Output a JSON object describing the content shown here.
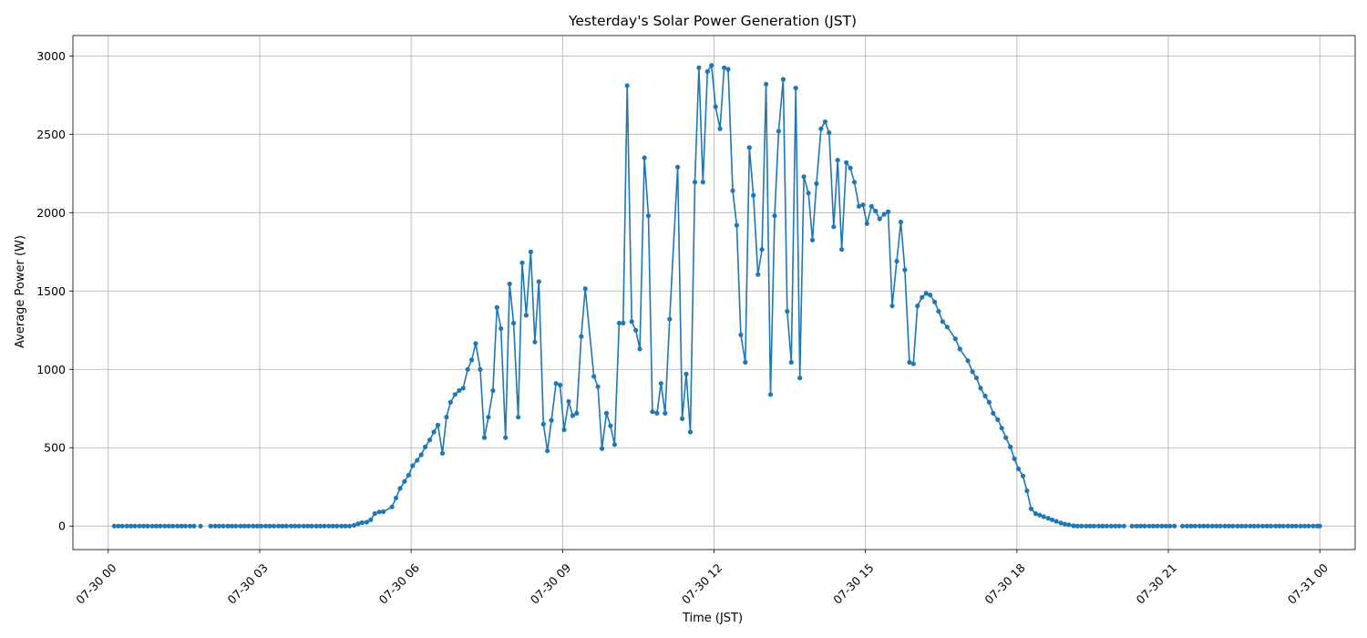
{
  "chart_data": {
    "type": "line",
    "title": "Yesterday's Solar Power Generation (JST)",
    "xlabel": "Time (JST)",
    "ylabel": "Average Power (W)",
    "xlim": [
      -0.7,
      24.7
    ],
    "ylim": [
      -150,
      3130
    ],
    "grid": true,
    "color": "#1f77b4",
    "x_ticks": [
      {
        "hour": 0,
        "label": "07-30 00"
      },
      {
        "hour": 3,
        "label": "07-30 03"
      },
      {
        "hour": 6,
        "label": "07-30 06"
      },
      {
        "hour": 9,
        "label": "07-30 09"
      },
      {
        "hour": 12,
        "label": "07-30 12"
      },
      {
        "hour": 15,
        "label": "07-30 15"
      },
      {
        "hour": 18,
        "label": "07-30 18"
      },
      {
        "hour": 21,
        "label": "07-30 21"
      },
      {
        "hour": 24,
        "label": "07-31 00"
      }
    ],
    "y_ticks": [
      0,
      500,
      1000,
      1500,
      2000,
      2500,
      3000
    ],
    "series": [
      {
        "segments": [
          [
            [
              0.12,
              0
            ],
            [
              0.2,
              0
            ],
            [
              0.28,
              0
            ],
            [
              0.37,
              0
            ],
            [
              0.45,
              0
            ],
            [
              0.53,
              0
            ],
            [
              0.62,
              0
            ],
            [
              0.7,
              0
            ],
            [
              0.78,
              0
            ],
            [
              0.87,
              0
            ],
            [
              0.95,
              0
            ],
            [
              1.03,
              0
            ],
            [
              1.12,
              0
            ],
            [
              1.2,
              0
            ],
            [
              1.28,
              0
            ],
            [
              1.37,
              0
            ],
            [
              1.45,
              0
            ],
            [
              1.53,
              0
            ],
            [
              1.62,
              0
            ],
            [
              1.7,
              0
            ]
          ],
          [
            [
              1.83,
              0
            ]
          ],
          [
            [
              2.03,
              0
            ],
            [
              2.12,
              0
            ],
            [
              2.2,
              0
            ],
            [
              2.28,
              0
            ],
            [
              2.37,
              0
            ],
            [
              2.45,
              0
            ],
            [
              2.53,
              0
            ],
            [
              2.62,
              0
            ],
            [
              2.7,
              0
            ],
            [
              2.78,
              0
            ],
            [
              2.87,
              0
            ],
            [
              2.95,
              0
            ],
            [
              3.03,
              0
            ],
            [
              3.12,
              0
            ],
            [
              3.2,
              0
            ],
            [
              3.28,
              0
            ],
            [
              3.37,
              0
            ],
            [
              3.45,
              0
            ],
            [
              3.53,
              0
            ],
            [
              3.62,
              0
            ],
            [
              3.7,
              0
            ],
            [
              3.78,
              0
            ],
            [
              3.87,
              0
            ],
            [
              3.95,
              0
            ],
            [
              4.03,
              0
            ],
            [
              4.12,
              0
            ],
            [
              4.2,
              0
            ],
            [
              4.28,
              0
            ],
            [
              4.37,
              0
            ],
            [
              4.45,
              0
            ],
            [
              4.53,
              0
            ],
            [
              4.62,
              0
            ],
            [
              4.7,
              0
            ],
            [
              4.78,
              0
            ],
            [
              4.87,
              5
            ],
            [
              4.95,
              15
            ],
            [
              5.03,
              22
            ],
            [
              5.12,
              25
            ],
            [
              5.2,
              40
            ],
            [
              5.28,
              80
            ],
            [
              5.37,
              90
            ],
            [
              5.45,
              92
            ],
            [
              5.62,
              122
            ],
            [
              5.7,
              180
            ],
            [
              5.78,
              240
            ],
            [
              5.87,
              285
            ],
            [
              5.95,
              325
            ],
            [
              6.03,
              385
            ],
            [
              6.12,
              420
            ],
            [
              6.2,
              455
            ],
            [
              6.28,
              505
            ],
            [
              6.37,
              550
            ],
            [
              6.45,
              600
            ],
            [
              6.53,
              645
            ],
            [
              6.62,
              465
            ],
            [
              6.7,
              695
            ],
            [
              6.78,
              790
            ],
            [
              6.87,
              840
            ],
            [
              6.95,
              865
            ],
            [
              7.03,
              880
            ],
            [
              7.12,
              1000
            ],
            [
              7.2,
              1060
            ],
            [
              7.28,
              1165
            ],
            [
              7.37,
              1000
            ],
            [
              7.45,
              565
            ],
            [
              7.53,
              695
            ],
            [
              7.62,
              865
            ],
            [
              7.7,
              1395
            ],
            [
              7.78,
              1260
            ],
            [
              7.87,
              565
            ],
            [
              7.95,
              1545
            ],
            [
              8.03,
              1295
            ],
            [
              8.12,
              695
            ],
            [
              8.2,
              1680
            ],
            [
              8.28,
              1345
            ],
            [
              8.37,
              1750
            ],
            [
              8.45,
              1175
            ],
            [
              8.53,
              1560
            ],
            [
              8.62,
              650
            ],
            [
              8.7,
              480
            ],
            [
              8.78,
              675
            ],
            [
              8.87,
              910
            ],
            [
              8.95,
              900
            ],
            [
              9.03,
              615
            ],
            [
              9.12,
              795
            ],
            [
              9.2,
              705
            ],
            [
              9.28,
              720
            ],
            [
              9.37,
              1210
            ],
            [
              9.45,
              1515
            ],
            [
              9.62,
              955
            ],
            [
              9.7,
              890
            ],
            [
              9.78,
              495
            ],
            [
              9.87,
              720
            ],
            [
              9.95,
              640
            ],
            [
              10.03,
              520
            ],
            [
              10.12,
              1295
            ],
            [
              10.2,
              1295
            ],
            [
              10.28,
              2810
            ],
            [
              10.37,
              1305
            ],
            [
              10.45,
              1250
            ],
            [
              10.53,
              1130
            ],
            [
              10.62,
              2350
            ],
            [
              10.7,
              1980
            ],
            [
              10.78,
              730
            ],
            [
              10.87,
              720
            ],
            [
              10.95,
              910
            ],
            [
              11.03,
              720
            ],
            [
              11.12,
              1320
            ],
            [
              11.28,
              2290
            ],
            [
              11.37,
              685
            ],
            [
              11.45,
              970
            ],
            [
              11.53,
              600
            ],
            [
              11.62,
              2195
            ],
            [
              11.7,
              2925
            ],
            [
              11.78,
              2195
            ],
            [
              11.87,
              2900
            ],
            [
              11.95,
              2940
            ],
            [
              12.03,
              2675
            ],
            [
              12.12,
              2535
            ],
            [
              12.2,
              2925
            ],
            [
              12.28,
              2915
            ],
            [
              12.37,
              2140
            ],
            [
              12.45,
              1920
            ],
            [
              12.53,
              1220
            ],
            [
              12.62,
              1045
            ],
            [
              12.7,
              2415
            ],
            [
              12.78,
              2110
            ],
            [
              12.87,
              1605
            ],
            [
              12.95,
              1765
            ],
            [
              13.03,
              2820
            ],
            [
              13.12,
              840
            ],
            [
              13.2,
              1980
            ],
            [
              13.28,
              2520
            ],
            [
              13.37,
              2850
            ],
            [
              13.45,
              1370
            ],
            [
              13.53,
              1045
            ],
            [
              13.62,
              2795
            ],
            [
              13.7,
              945
            ],
            [
              13.78,
              2230
            ],
            [
              13.87,
              2125
            ],
            [
              13.95,
              1825
            ],
            [
              14.03,
              2185
            ],
            [
              14.12,
              2535
            ],
            [
              14.2,
              2580
            ],
            [
              14.28,
              2510
            ],
            [
              14.37,
              1910
            ],
            [
              14.45,
              2335
            ],
            [
              14.53,
              1765
            ],
            [
              14.62,
              2320
            ],
            [
              14.7,
              2285
            ],
            [
              14.78,
              2195
            ],
            [
              14.87,
              2040
            ],
            [
              14.95,
              2050
            ],
            [
              15.03,
              1930
            ],
            [
              15.12,
              2040
            ],
            [
              15.2,
              2010
            ],
            [
              15.28,
              1960
            ],
            [
              15.37,
              1990
            ],
            [
              15.45,
              2005
            ],
            [
              15.53,
              1405
            ],
            [
              15.62,
              1690
            ],
            [
              15.7,
              1940
            ],
            [
              15.78,
              1635
            ],
            [
              15.87,
              1045
            ],
            [
              15.95,
              1035
            ],
            [
              16.03,
              1405
            ],
            [
              16.12,
              1460
            ],
            [
              16.2,
              1485
            ],
            [
              16.28,
              1475
            ],
            [
              16.37,
              1430
            ],
            [
              16.45,
              1370
            ],
            [
              16.53,
              1305
            ],
            [
              16.62,
              1270
            ],
            [
              16.78,
              1195
            ],
            [
              16.87,
              1130
            ],
            [
              17.03,
              1055
            ],
            [
              17.12,
              985
            ],
            [
              17.2,
              945
            ],
            [
              17.28,
              880
            ],
            [
              17.37,
              830
            ],
            [
              17.45,
              790
            ],
            [
              17.53,
              720
            ],
            [
              17.62,
              680
            ],
            [
              17.7,
              625
            ],
            [
              17.78,
              565
            ],
            [
              17.87,
              505
            ],
            [
              17.95,
              430
            ],
            [
              18.03,
              365
            ],
            [
              18.12,
              320
            ],
            [
              18.2,
              225
            ],
            [
              18.28,
              110
            ],
            [
              18.37,
              80
            ],
            [
              18.45,
              70
            ],
            [
              18.53,
              60
            ],
            [
              18.62,
              50
            ],
            [
              18.7,
              40
            ],
            [
              18.78,
              30
            ],
            [
              18.87,
              20
            ],
            [
              18.95,
              12
            ],
            [
              19.03,
              8
            ],
            [
              19.12,
              2
            ],
            [
              19.2,
              0
            ],
            [
              19.28,
              0
            ],
            [
              19.37,
              0
            ],
            [
              19.45,
              0
            ],
            [
              19.53,
              0
            ],
            [
              19.62,
              0
            ],
            [
              19.7,
              0
            ],
            [
              19.78,
              0
            ],
            [
              19.87,
              0
            ],
            [
              19.95,
              0
            ],
            [
              20.03,
              0
            ],
            [
              20.12,
              0
            ]
          ],
          [
            [
              20.28,
              0
            ],
            [
              20.37,
              0
            ],
            [
              20.45,
              0
            ],
            [
              20.53,
              0
            ],
            [
              20.62,
              0
            ],
            [
              20.7,
              0
            ],
            [
              20.78,
              0
            ],
            [
              20.87,
              0
            ],
            [
              20.95,
              0
            ],
            [
              21.03,
              0
            ],
            [
              21.12,
              0
            ]
          ],
          [
            [
              21.28,
              0
            ],
            [
              21.37,
              0
            ],
            [
              21.45,
              0
            ],
            [
              21.53,
              0
            ],
            [
              21.62,
              0
            ],
            [
              21.7,
              0
            ],
            [
              21.78,
              0
            ],
            [
              21.87,
              0
            ],
            [
              21.95,
              0
            ],
            [
              22.03,
              0
            ],
            [
              22.12,
              0
            ],
            [
              22.2,
              0
            ],
            [
              22.28,
              0
            ],
            [
              22.37,
              0
            ],
            [
              22.45,
              0
            ],
            [
              22.53,
              0
            ],
            [
              22.62,
              0
            ],
            [
              22.7,
              0
            ],
            [
              22.78,
              0
            ],
            [
              22.87,
              0
            ],
            [
              22.95,
              0
            ],
            [
              23.03,
              0
            ],
            [
              23.12,
              0
            ],
            [
              23.2,
              0
            ],
            [
              23.28,
              0
            ],
            [
              23.37,
              0
            ],
            [
              23.45,
              0
            ],
            [
              23.53,
              0
            ],
            [
              23.62,
              0
            ],
            [
              23.7,
              0
            ],
            [
              23.78,
              0
            ],
            [
              23.87,
              0
            ],
            [
              23.95,
              0
            ],
            [
              24.0,
              0
            ]
          ]
        ]
      }
    ]
  }
}
